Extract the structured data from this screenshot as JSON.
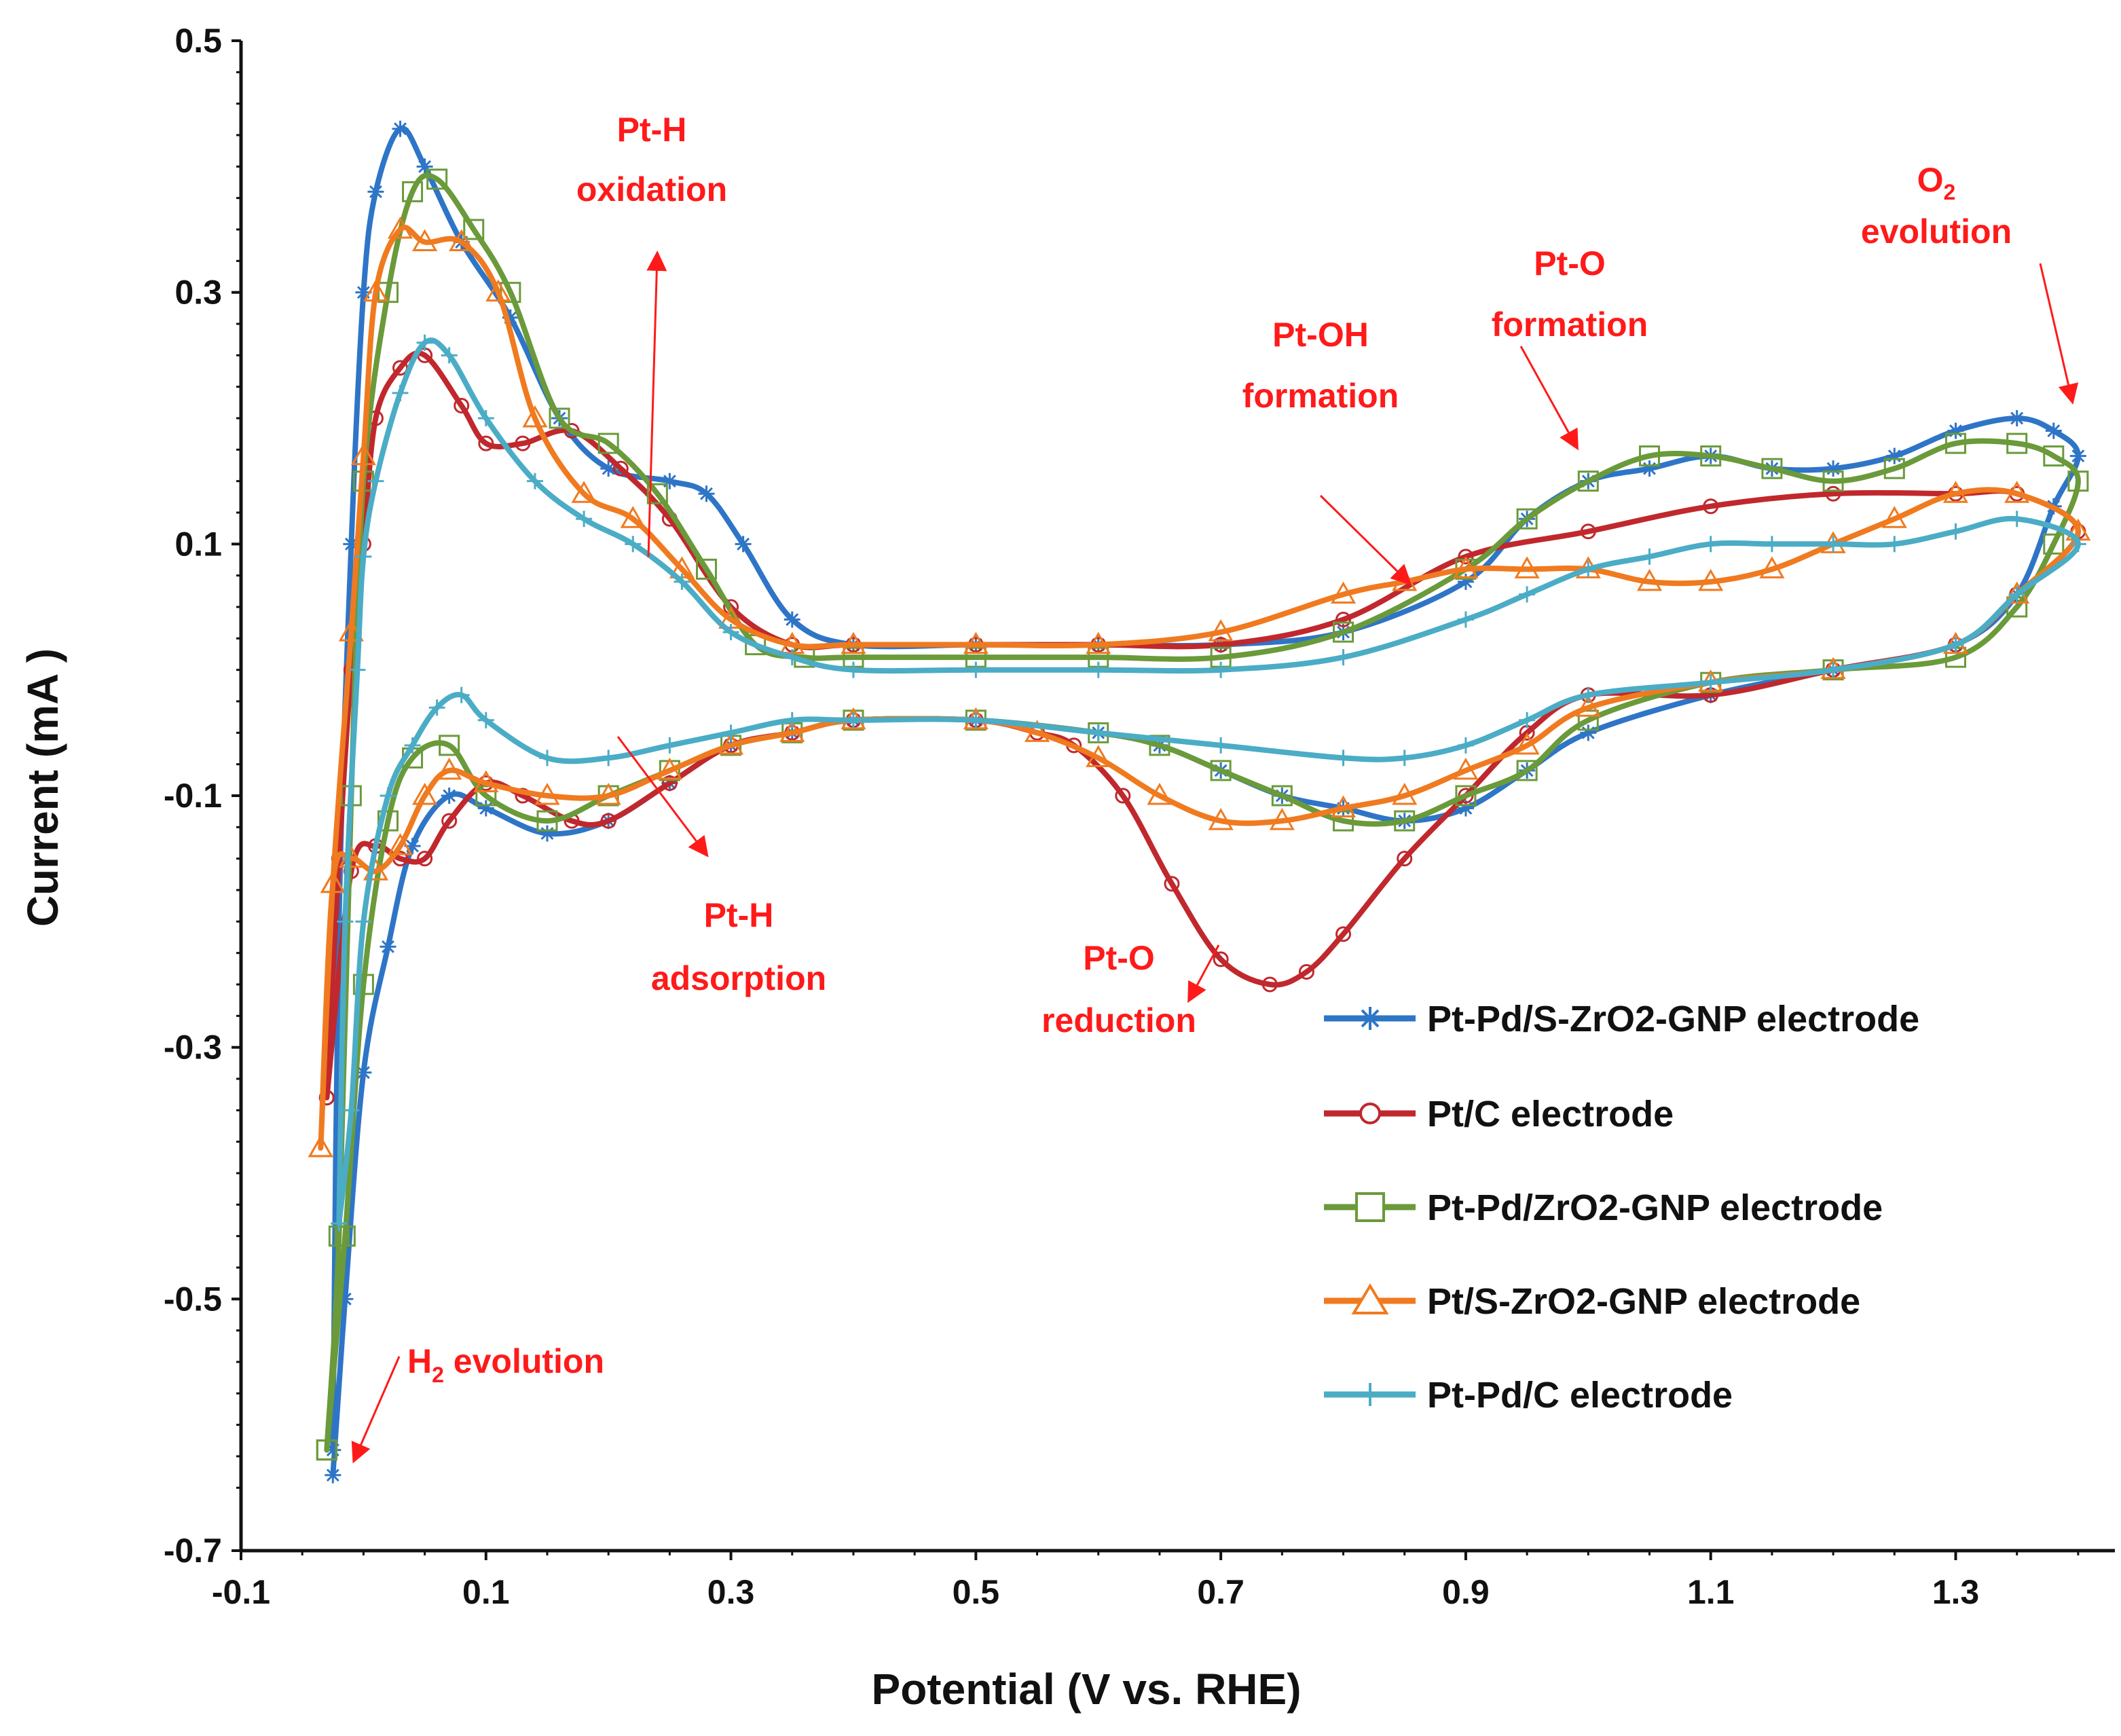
{
  "chart_data": {
    "type": "line",
    "xlabel": "Potential (V vs. RHE)",
    "ylabel": "Current  (mA )",
    "xlim": [
      -0.1,
      1.43
    ],
    "ylim": [
      -0.7,
      0.5
    ],
    "xticks": [
      "-0.1",
      "0.1",
      "0.3",
      "0.5",
      "0.7",
      "0.9",
      "1.1",
      "1.3"
    ],
    "yticks": [
      "0.5",
      "0.3",
      "0.1",
      "-0.1",
      "-0.3",
      "-0.5",
      "-0.7"
    ],
    "grid": false,
    "legend_position": "bottom-right",
    "series": [
      {
        "name": "Pt-Pd/S-ZrO2-GNP electrode",
        "color": "#2e75c7",
        "marker": "asterisk",
        "x": [
          -0.025,
          -0.02,
          -0.01,
          0.0,
          0.01,
          0.03,
          0.05,
          0.08,
          0.12,
          0.16,
          0.2,
          0.25,
          0.28,
          0.31,
          0.35,
          0.4,
          0.5,
          0.6,
          0.7,
          0.8,
          0.9,
          0.95,
          1.0,
          1.05,
          1.1,
          1.15,
          1.2,
          1.25,
          1.3,
          1.35,
          1.38,
          1.4,
          1.38,
          1.35,
          1.3,
          1.2,
          1.1,
          1.0,
          0.95,
          0.9,
          0.85,
          0.8,
          0.75,
          0.7,
          0.65,
          0.6,
          0.5,
          0.4,
          0.35,
          0.3,
          0.25,
          0.2,
          0.15,
          0.1,
          0.07,
          0.04,
          0.02,
          0.0,
          -0.015,
          -0.025
        ],
        "y": [
          -0.62,
          -0.2,
          0.1,
          0.3,
          0.38,
          0.43,
          0.4,
          0.34,
          0.28,
          0.2,
          0.16,
          0.15,
          0.14,
          0.1,
          0.04,
          0.02,
          0.02,
          0.02,
          0.02,
          0.03,
          0.07,
          0.12,
          0.15,
          0.16,
          0.17,
          0.16,
          0.16,
          0.17,
          0.19,
          0.2,
          0.19,
          0.17,
          0.13,
          0.06,
          0.02,
          0.0,
          -0.02,
          -0.05,
          -0.08,
          -0.11,
          -0.12,
          -0.11,
          -0.1,
          -0.08,
          -0.06,
          -0.05,
          -0.04,
          -0.04,
          -0.05,
          -0.06,
          -0.09,
          -0.12,
          -0.13,
          -0.11,
          -0.1,
          -0.14,
          -0.22,
          -0.32,
          -0.5,
          -0.64
        ]
      },
      {
        "name": "Pt/C electrode",
        "color": "#c0282d",
        "marker": "circle",
        "x": [
          -0.03,
          -0.02,
          -0.01,
          0.0,
          0.01,
          0.03,
          0.05,
          0.08,
          0.1,
          0.13,
          0.17,
          0.21,
          0.25,
          0.3,
          0.35,
          0.4,
          0.5,
          0.6,
          0.7,
          0.8,
          0.9,
          1.0,
          1.1,
          1.2,
          1.3,
          1.35,
          1.4,
          1.35,
          1.3,
          1.2,
          1.1,
          1.0,
          0.95,
          0.9,
          0.85,
          0.8,
          0.77,
          0.74,
          0.7,
          0.66,
          0.62,
          0.58,
          0.55,
          0.5,
          0.4,
          0.35,
          0.3,
          0.25,
          0.2,
          0.17,
          0.13,
          0.1,
          0.07,
          0.05,
          0.03,
          0.01,
          -0.01,
          -0.03
        ],
        "y": [
          -0.34,
          -0.15,
          0.0,
          0.1,
          0.2,
          0.24,
          0.25,
          0.21,
          0.18,
          0.18,
          0.19,
          0.16,
          0.12,
          0.05,
          0.02,
          0.02,
          0.02,
          0.02,
          0.02,
          0.04,
          0.09,
          0.11,
          0.13,
          0.14,
          0.14,
          0.14,
          0.11,
          0.06,
          0.02,
          0.0,
          -0.02,
          -0.02,
          -0.05,
          -0.1,
          -0.15,
          -0.21,
          -0.24,
          -0.25,
          -0.23,
          -0.17,
          -0.1,
          -0.06,
          -0.05,
          -0.04,
          -0.04,
          -0.05,
          -0.06,
          -0.09,
          -0.12,
          -0.12,
          -0.1,
          -0.09,
          -0.12,
          -0.15,
          -0.15,
          -0.14,
          -0.16,
          -0.34
        ]
      },
      {
        "name": "Pt-Pd/ZrO2-GNP electrode",
        "color": "#6a9a3a",
        "marker": "square",
        "x": [
          -0.03,
          -0.02,
          -0.01,
          0.0,
          0.02,
          0.04,
          0.06,
          0.09,
          0.12,
          0.16,
          0.2,
          0.24,
          0.28,
          0.32,
          0.36,
          0.4,
          0.5,
          0.6,
          0.7,
          0.8,
          0.9,
          0.95,
          1.0,
          1.05,
          1.1,
          1.15,
          1.2,
          1.25,
          1.3,
          1.35,
          1.38,
          1.4,
          1.38,
          1.35,
          1.3,
          1.2,
          1.1,
          1.0,
          0.95,
          0.9,
          0.85,
          0.8,
          0.75,
          0.7,
          0.65,
          0.6,
          0.5,
          0.4,
          0.35,
          0.3,
          0.25,
          0.2,
          0.15,
          0.1,
          0.07,
          0.04,
          0.02,
          0.0,
          -0.015,
          -0.03
        ],
        "y": [
          -0.62,
          -0.45,
          -0.1,
          0.15,
          0.3,
          0.38,
          0.39,
          0.35,
          0.3,
          0.2,
          0.18,
          0.14,
          0.08,
          0.02,
          0.01,
          0.01,
          0.01,
          0.01,
          0.01,
          0.03,
          0.08,
          0.12,
          0.15,
          0.17,
          0.17,
          0.16,
          0.15,
          0.16,
          0.18,
          0.18,
          0.17,
          0.15,
          0.1,
          0.05,
          0.01,
          0.0,
          -0.01,
          -0.04,
          -0.08,
          -0.1,
          -0.12,
          -0.12,
          -0.1,
          -0.08,
          -0.06,
          -0.05,
          -0.04,
          -0.04,
          -0.05,
          -0.06,
          -0.08,
          -0.1,
          -0.12,
          -0.1,
          -0.06,
          -0.07,
          -0.12,
          -0.25,
          -0.45,
          -0.62
        ]
      },
      {
        "name": "Pt/S-ZrO2-GNP electrode",
        "color": "#f07a1f",
        "marker": "triangle",
        "x": [
          -0.035,
          -0.025,
          -0.01,
          0.0,
          0.01,
          0.03,
          0.05,
          0.08,
          0.11,
          0.14,
          0.18,
          0.22,
          0.26,
          0.3,
          0.35,
          0.4,
          0.5,
          0.6,
          0.7,
          0.8,
          0.85,
          0.9,
          0.95,
          1.0,
          1.05,
          1.1,
          1.15,
          1.2,
          1.25,
          1.3,
          1.35,
          1.4,
          1.35,
          1.3,
          1.2,
          1.1,
          1.0,
          0.95,
          0.9,
          0.85,
          0.8,
          0.75,
          0.7,
          0.65,
          0.6,
          0.55,
          0.5,
          0.4,
          0.35,
          0.3,
          0.25,
          0.2,
          0.15,
          0.1,
          0.07,
          0.05,
          0.03,
          0.01,
          -0.01,
          -0.025,
          -0.035
        ],
        "y": [
          -0.38,
          -0.17,
          0.03,
          0.17,
          0.3,
          0.35,
          0.34,
          0.34,
          0.3,
          0.2,
          0.14,
          0.12,
          0.08,
          0.04,
          0.02,
          0.02,
          0.02,
          0.02,
          0.03,
          0.06,
          0.07,
          0.08,
          0.08,
          0.08,
          0.07,
          0.07,
          0.08,
          0.1,
          0.12,
          0.14,
          0.14,
          0.11,
          0.06,
          0.02,
          0.0,
          -0.01,
          -0.03,
          -0.06,
          -0.08,
          -0.1,
          -0.11,
          -0.12,
          -0.12,
          -0.1,
          -0.07,
          -0.05,
          -0.04,
          -0.04,
          -0.05,
          -0.06,
          -0.08,
          -0.1,
          -0.1,
          -0.09,
          -0.08,
          -0.1,
          -0.14,
          -0.16,
          -0.15,
          -0.17,
          -0.38
        ]
      },
      {
        "name": "Pt-Pd/C electrode",
        "color": "#4bacc6",
        "marker": "plus",
        "x": [
          -0.02,
          -0.015,
          -0.005,
          0.0,
          0.01,
          0.03,
          0.05,
          0.07,
          0.1,
          0.14,
          0.18,
          0.22,
          0.26,
          0.3,
          0.35,
          0.4,
          0.5,
          0.6,
          0.7,
          0.8,
          0.9,
          0.95,
          1.0,
          1.05,
          1.1,
          1.15,
          1.2,
          1.25,
          1.3,
          1.35,
          1.4,
          1.35,
          1.3,
          1.2,
          1.1,
          1.0,
          0.95,
          0.9,
          0.85,
          0.8,
          0.7,
          0.6,
          0.5,
          0.4,
          0.35,
          0.3,
          0.25,
          0.2,
          0.15,
          0.1,
          0.08,
          0.06,
          0.04,
          0.02,
          0.0,
          -0.01,
          -0.02
        ],
        "y": [
          -0.44,
          -0.2,
          0.0,
          0.09,
          0.15,
          0.22,
          0.26,
          0.25,
          0.2,
          0.15,
          0.12,
          0.1,
          0.07,
          0.03,
          0.01,
          0.0,
          0.0,
          0.0,
          0.0,
          0.01,
          0.04,
          0.06,
          0.08,
          0.09,
          0.1,
          0.1,
          0.1,
          0.1,
          0.11,
          0.12,
          0.1,
          0.06,
          0.02,
          0.0,
          -0.01,
          -0.02,
          -0.04,
          -0.06,
          -0.07,
          -0.07,
          -0.06,
          -0.05,
          -0.04,
          -0.04,
          -0.04,
          -0.05,
          -0.06,
          -0.07,
          -0.07,
          -0.04,
          -0.02,
          -0.03,
          -0.06,
          -0.1,
          -0.2,
          -0.35,
          -0.44
        ]
      }
    ],
    "annotations": [
      {
        "text": "Pt-H oxidation",
        "lines": [
          "Pt-H",
          "oxidation"
        ]
      },
      {
        "text": "Pt-OH formation",
        "lines": [
          "Pt-OH",
          "formation"
        ]
      },
      {
        "text": "Pt-O formation",
        "lines": [
          "Pt-O",
          "formation"
        ]
      },
      {
        "text": "O2 evolution",
        "lines": [
          "O2",
          "evolution"
        ]
      },
      {
        "text": "Pt-H adsorption",
        "lines": [
          "Pt-H",
          "adsorption"
        ]
      },
      {
        "text": "Pt-O reduction",
        "lines": [
          "Pt-O",
          "reduction"
        ]
      },
      {
        "text": "H2 evolution",
        "lines": [
          "H2 evolution"
        ]
      }
    ]
  },
  "colors": {
    "annotation": "#ff1a1a",
    "axis": "#111111"
  }
}
